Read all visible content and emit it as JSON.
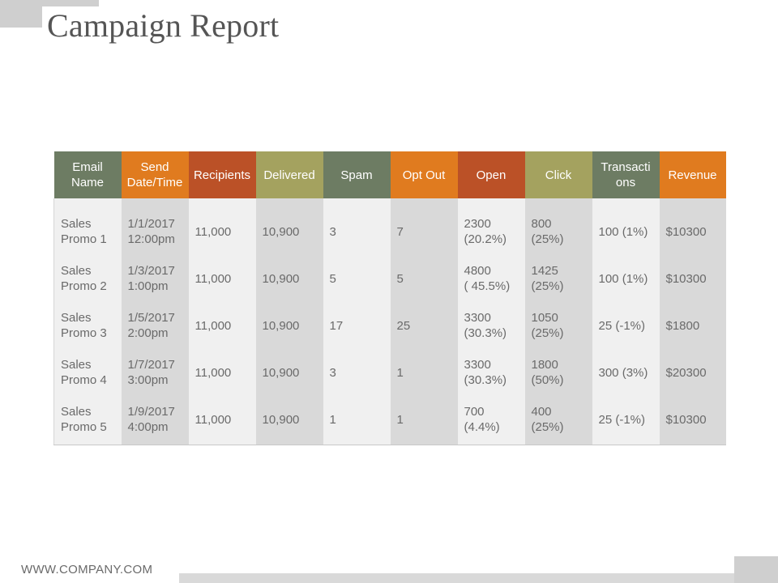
{
  "title": "Campaign Report",
  "columns": [
    "Email Name",
    "Send Date/Time",
    "Recipients",
    "Delivered",
    "Spam",
    "Opt Out",
    "Open",
    "Click",
    "Transacti ons",
    "Revenue"
  ],
  "rows": [
    [
      "Sales\nPromo 1",
      "1/1/2017\n12:00pm",
      "11,000",
      "10,900",
      "3",
      "7",
      "2300\n(20.2%)",
      "800\n(25%)",
      "100 (1%)",
      "$10300"
    ],
    [
      "Sales\nPromo 2",
      "1/3/2017\n1:00pm",
      "11,000",
      "10,900",
      "5",
      "5",
      "4800\n( 45.5%)",
      "1425\n(25%)",
      "100 (1%)",
      "$10300"
    ],
    [
      "Sales\nPromo 3",
      "1/5/2017\n2:00pm",
      "11,000",
      "10,900",
      "17",
      "25",
      "3300\n(30.3%)",
      "1050\n(25%)",
      "25 (-1%)",
      "$1800"
    ],
    [
      "Sales\nPromo 4",
      "1/7/2017\n3:00pm",
      "11,000",
      "10,900",
      "3",
      "1",
      "3300\n(30.3%)",
      "1800\n(50%)",
      "300 (3%)",
      "$20300"
    ],
    [
      "Sales\nPromo 5",
      "1/9/2017\n4:00pm",
      "11,000",
      "10,900",
      "1",
      "1",
      "700\n(4.4%)",
      "400\n(25%)",
      "25 (-1%)",
      "$10300"
    ]
  ],
  "header_colors": [
    "#6d7c63",
    "#e07b1f",
    "#bb5127",
    "#a4a25f",
    "#6d7c63",
    "#e07b1f",
    "#bb5127",
    "#a4a25f",
    "#6d7c63",
    "#e07b1f"
  ],
  "footer": "WWW.COMPANY.COM"
}
